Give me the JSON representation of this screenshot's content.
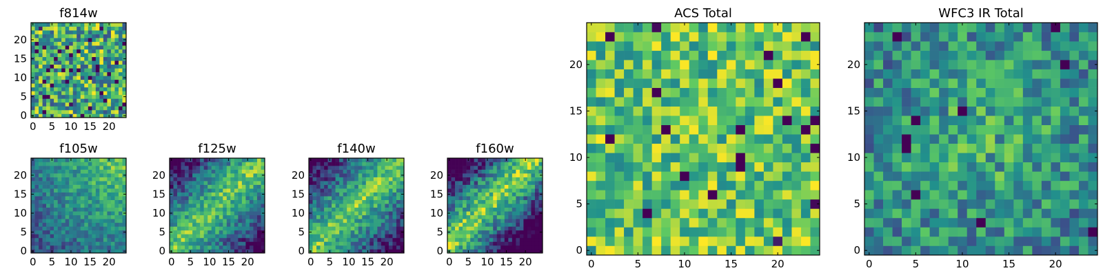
{
  "figure": {
    "background": "#ffffff",
    "colormap": "viridis",
    "colormap_stops": [
      "#440154",
      "#3b528b",
      "#21918c",
      "#5ec962",
      "#fde725"
    ]
  },
  "chart_data": [
    {
      "type": "heatmap",
      "title": "f814w",
      "grid_size": 25,
      "xticks": [
        "0",
        "5",
        "10",
        "15",
        "20"
      ],
      "yticks": [
        "0",
        "5",
        "10",
        "15",
        "20"
      ],
      "xlim": [
        -0.5,
        24.5
      ],
      "ylim": [
        -0.5,
        24.5
      ],
      "values_note": "noisy field (seeded)",
      "pattern": "noise-fine",
      "seed": 814
    },
    {
      "type": "heatmap",
      "title": "f105w",
      "grid_size": 25,
      "xticks": [
        "0",
        "5",
        "10",
        "15",
        "20"
      ],
      "yticks": [
        "0",
        "5",
        "10",
        "15",
        "20"
      ],
      "xlim": [
        -0.5,
        24.5
      ],
      "ylim": [
        -0.5,
        24.5
      ],
      "pattern": "corner-bright",
      "seed": 105
    },
    {
      "type": "heatmap",
      "title": "f125w",
      "grid_size": 25,
      "xticks": [
        "0",
        "5",
        "10",
        "15",
        "20"
      ],
      "yticks": [
        "0",
        "5",
        "10",
        "15",
        "20"
      ],
      "xlim": [
        -0.5,
        24.5
      ],
      "ylim": [
        -0.5,
        24.5
      ],
      "pattern": "diagonal",
      "seed": 125
    },
    {
      "type": "heatmap",
      "title": "f140w",
      "grid_size": 25,
      "xticks": [
        "0",
        "5",
        "10",
        "15",
        "20"
      ],
      "yticks": [
        "0",
        "5",
        "10",
        "15",
        "20"
      ],
      "xlim": [
        -0.5,
        24.5
      ],
      "ylim": [
        -0.5,
        24.5
      ],
      "pattern": "diagonal",
      "seed": 140
    },
    {
      "type": "heatmap",
      "title": "f160w",
      "grid_size": 25,
      "xticks": [
        "0",
        "5",
        "10",
        "15",
        "20"
      ],
      "yticks": [
        "0",
        "5",
        "10",
        "15",
        "20"
      ],
      "xlim": [
        -0.5,
        24.5
      ],
      "ylim": [
        -0.5,
        24.5
      ],
      "pattern": "diagonal-strong",
      "seed": 160
    },
    {
      "type": "heatmap",
      "title": "ACS Total",
      "grid_size": 25,
      "xticks": [
        "0",
        "5",
        "10",
        "15",
        "20"
      ],
      "yticks": [
        "0",
        "5",
        "10",
        "15",
        "20"
      ],
      "xlim": [
        -0.5,
        24.5
      ],
      "ylim": [
        -0.5,
        24.5
      ],
      "pattern": "noise-bright",
      "seed": 2001
    },
    {
      "type": "heatmap",
      "title": "WFC3 IR Total",
      "grid_size": 25,
      "xticks": [
        "0",
        "5",
        "10",
        "15",
        "20"
      ],
      "yticks": [
        "0",
        "5",
        "10",
        "15",
        "20"
      ],
      "xlim": [
        -0.5,
        24.5
      ],
      "ylim": [
        -0.5,
        24.5
      ],
      "pattern": "noise-central",
      "seed": 3002
    }
  ]
}
